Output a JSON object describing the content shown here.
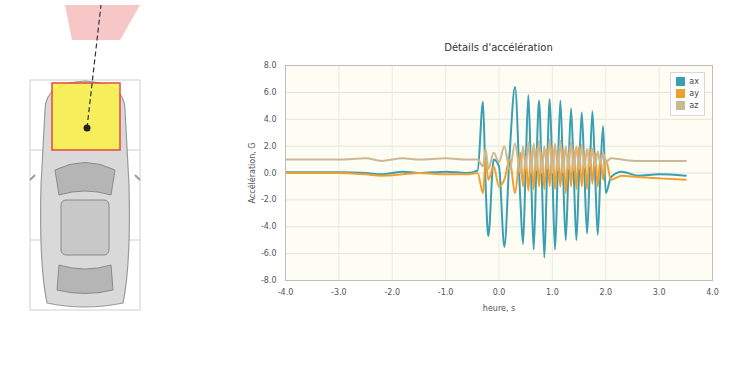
{
  "chart_data": {
    "type": "line",
    "title": "Détails d'accélération",
    "x_label": "heure, s",
    "y_label": "Accélération, G",
    "legend": "top-right",
    "grid": true,
    "xlim": [
      -4,
      4
    ],
    "ylim": [
      -8,
      8
    ],
    "xticks": [
      {
        "value": -4,
        "label": "-4.0"
      },
      {
        "value": -3,
        "label": "-3.0"
      },
      {
        "value": -2,
        "label": "-2.0"
      },
      {
        "value": -1,
        "label": "-1.0"
      },
      {
        "value": 0,
        "label": "0.0"
      },
      {
        "value": 1,
        "label": "1.0"
      },
      {
        "value": 2,
        "label": "2.0"
      },
      {
        "value": 3,
        "label": "3.0"
      },
      {
        "value": 4,
        "label": "4.0"
      }
    ],
    "yticks": [
      {
        "value": -8,
        "label": "-8.0"
      },
      {
        "value": -6,
        "label": "-6.0"
      },
      {
        "value": -4,
        "label": "-4.0"
      },
      {
        "value": -2,
        "label": "-2.0"
      },
      {
        "value": 0,
        "label": "0.0"
      },
      {
        "value": 2,
        "label": "2.0"
      },
      {
        "value": 4,
        "label": "4.0"
      },
      {
        "value": 6,
        "label": "6.0"
      },
      {
        "value": 8,
        "label": "8.0"
      }
    ],
    "x": [
      -4,
      -3,
      -2.5,
      -2.2,
      -1.8,
      -1.5,
      -1.0,
      -0.6,
      -0.4,
      -0.3,
      -0.25,
      -0.2,
      -0.1,
      0.0,
      0.1,
      0.2,
      0.3,
      0.4,
      0.45,
      0.5,
      0.55,
      0.6,
      0.65,
      0.7,
      0.75,
      0.8,
      0.85,
      0.9,
      0.95,
      1.0,
      1.05,
      1.1,
      1.15,
      1.2,
      1.25,
      1.3,
      1.35,
      1.4,
      1.45,
      1.5,
      1.55,
      1.6,
      1.65,
      1.7,
      1.75,
      1.8,
      1.85,
      1.9,
      1.95,
      2.0,
      2.1,
      2.3,
      2.6,
      3.0,
      3.5
    ],
    "series": [
      {
        "name": "ax",
        "color": "#3a9fb4",
        "values": [
          0.05,
          0.05,
          0.0,
          -0.1,
          0.1,
          0.0,
          0.1,
          0.0,
          0.2,
          5.3,
          -1.0,
          -4.7,
          1.0,
          0.5,
          -5.5,
          1.5,
          6.4,
          -2.0,
          -5.3,
          0.5,
          5.8,
          0.0,
          -5.7,
          0.5,
          5.4,
          0.0,
          -6.3,
          0.0,
          5.5,
          0.0,
          -5.7,
          0.0,
          5.4,
          0.0,
          -5.0,
          0.0,
          4.8,
          0.0,
          -5.0,
          0.0,
          4.5,
          0.0,
          -4.5,
          0.0,
          4.6,
          0.0,
          -4.6,
          0.0,
          3.5,
          -1.5,
          -0.3,
          0.1,
          -0.2,
          -0.1,
          -0.2
        ]
      },
      {
        "name": "ay",
        "color": "#f0a032",
        "values": [
          0.0,
          0.0,
          -0.1,
          -0.2,
          -0.1,
          0.0,
          -0.1,
          -0.1,
          0.0,
          -1.5,
          1.0,
          -0.5,
          0.5,
          -1.0,
          -0.5,
          1.0,
          -1.5,
          1.5,
          -1.0,
          1.2,
          -1.3,
          1.5,
          -1.2,
          1.8,
          -1.0,
          1.5,
          -1.2,
          1.8,
          -1.0,
          2.0,
          -1.2,
          1.5,
          -1.0,
          1.8,
          -1.5,
          1.5,
          -1.0,
          1.8,
          -1.2,
          2.0,
          -1.0,
          1.5,
          -1.2,
          1.8,
          -0.8,
          1.5,
          -1.0,
          1.2,
          -0.5,
          1.0,
          -0.5,
          -0.2,
          -0.3,
          -0.4,
          -0.5
        ]
      },
      {
        "name": "az",
        "color": "#c9b995",
        "values": [
          1.0,
          1.0,
          1.1,
          0.9,
          1.1,
          1.0,
          1.1,
          1.0,
          1.0,
          0.5,
          1.8,
          0.3,
          1.5,
          0.8,
          2.0,
          0.2,
          2.2,
          0.0,
          2.0,
          0.3,
          2.3,
          0.0,
          2.2,
          0.2,
          2.4,
          0.0,
          2.0,
          0.3,
          2.5,
          0.0,
          2.2,
          0.2,
          2.4,
          0.0,
          2.0,
          0.3,
          2.3,
          0.2,
          2.0,
          0.3,
          2.1,
          0.4,
          1.8,
          0.5,
          1.8,
          0.5,
          1.6,
          0.7,
          1.5,
          0.8,
          1.1,
          1.0,
          0.9,
          0.9,
          0.9
        ]
      }
    ]
  }
}
